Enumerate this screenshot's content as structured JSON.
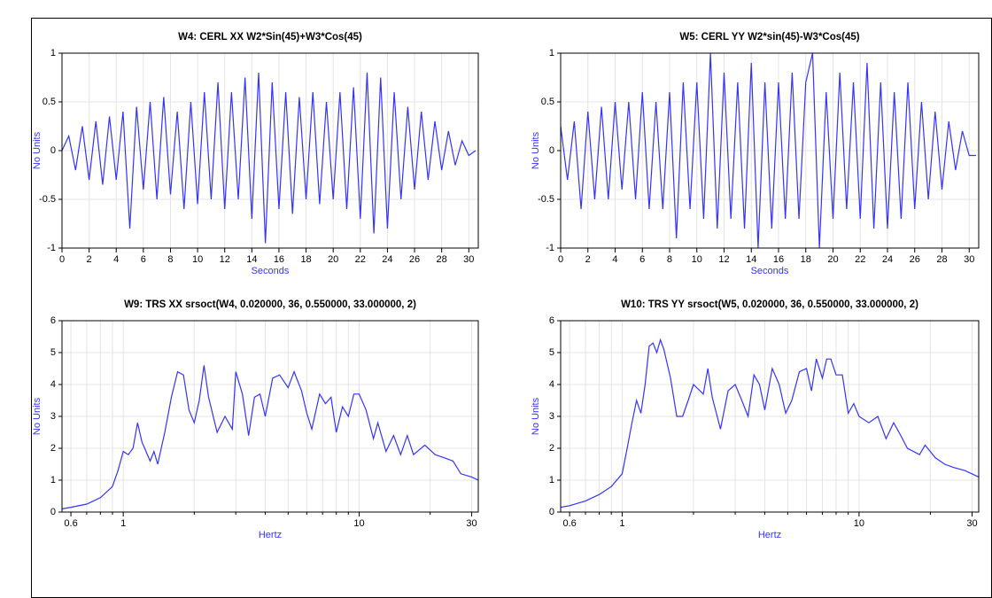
{
  "chart_data": [
    {
      "type": "line",
      "title": "W4: CERL XX  W2*Sin(45)+W3*Cos(45)",
      "x_label": "Seconds",
      "y_label": "No Units",
      "color": "#3333ff",
      "grid": true,
      "xlim": [
        0,
        30.7
      ],
      "xticks": [
        0,
        2,
        4,
        6,
        8,
        10,
        12,
        14,
        16,
        18,
        20,
        22,
        24,
        26,
        28,
        30
      ],
      "ylim": [
        -1,
        1
      ],
      "yticks": [
        -1,
        -0.5,
        0,
        0.5,
        1
      ],
      "x": [
        0,
        0.5,
        1,
        1.5,
        2,
        2.5,
        3,
        3.5,
        4,
        4.5,
        5,
        5.5,
        6,
        6.5,
        7,
        7.5,
        8,
        8.5,
        9,
        9.5,
        10,
        10.5,
        11,
        11.5,
        12,
        12.5,
        13,
        13.5,
        14,
        14.5,
        15,
        15.5,
        16,
        16.5,
        17,
        17.5,
        18,
        18.5,
        19,
        19.5,
        20,
        20.5,
        21,
        21.5,
        22,
        22.5,
        23,
        23.5,
        24,
        24.5,
        25,
        25.5,
        26,
        26.5,
        27,
        27.5,
        28,
        28.5,
        29,
        29.5,
        30,
        30.5
      ],
      "values": [
        0,
        0.15,
        -0.2,
        0.25,
        -0.3,
        0.3,
        -0.35,
        0.35,
        -0.3,
        0.4,
        -0.8,
        0.45,
        -0.4,
        0.5,
        -0.5,
        0.55,
        -0.45,
        0.4,
        -0.6,
        0.5,
        -0.55,
        0.6,
        -0.5,
        0.7,
        -0.6,
        0.6,
        -0.5,
        0.75,
        -0.7,
        0.8,
        -0.95,
        0.7,
        -0.6,
        0.6,
        -0.65,
        0.55,
        -0.5,
        0.6,
        -0.55,
        0.5,
        -0.5,
        0.6,
        -0.6,
        0.65,
        -0.7,
        0.8,
        -0.85,
        0.75,
        -0.8,
        0.6,
        -0.5,
        0.45,
        -0.4,
        0.4,
        -0.3,
        0.3,
        -0.2,
        0.2,
        -0.15,
        0.1,
        -0.05,
        0
      ]
    },
    {
      "type": "line",
      "title": "W5: CERL YY  W2*sin(45)-W3*Cos(45)",
      "x_label": "Seconds",
      "y_label": "No Units",
      "color": "#3333ff",
      "grid": true,
      "xlim": [
        0,
        30.7
      ],
      "xticks": [
        0,
        2,
        4,
        6,
        8,
        10,
        12,
        14,
        16,
        18,
        20,
        22,
        24,
        26,
        28,
        30
      ],
      "ylim": [
        -1,
        1
      ],
      "yticks": [
        -1,
        -0.5,
        0,
        0.5,
        1
      ],
      "x": [
        0,
        0.5,
        1,
        1.5,
        2,
        2.5,
        3,
        3.5,
        4,
        4.5,
        5,
        5.5,
        6,
        6.5,
        7,
        7.5,
        8,
        8.5,
        9,
        9.5,
        10,
        10.5,
        11,
        11.5,
        12,
        12.5,
        13,
        13.5,
        14,
        14.5,
        15,
        15.5,
        16,
        16.5,
        17,
        17.5,
        18,
        18.5,
        19,
        19.5,
        20,
        20.5,
        21,
        21.5,
        22,
        22.5,
        23,
        23.5,
        24,
        24.5,
        25,
        25.5,
        26,
        26.5,
        27,
        27.5,
        28,
        28.5,
        29,
        29.5,
        30,
        30.5
      ],
      "values": [
        0.25,
        -0.3,
        0.3,
        -0.6,
        0.4,
        -0.5,
        0.45,
        -0.5,
        0.5,
        -0.4,
        0.5,
        -0.5,
        0.6,
        -0.6,
        0.5,
        -0.6,
        0.6,
        -0.9,
        0.7,
        -0.6,
        0.7,
        -0.7,
        1.0,
        -0.8,
        0.8,
        -0.7,
        0.7,
        -0.8,
        0.9,
        -1.0,
        0.7,
        -0.8,
        0.7,
        -0.7,
        0.8,
        -0.7,
        0.7,
        1.0,
        -1.0,
        0.6,
        -0.7,
        0.8,
        -0.6,
        0.7,
        -0.7,
        0.9,
        -0.8,
        0.7,
        -0.8,
        0.6,
        -0.7,
        0.7,
        -0.6,
        0.5,
        -0.5,
        0.4,
        -0.4,
        0.3,
        -0.2,
        0.2,
        -0.05,
        -0.05
      ]
    },
    {
      "type": "line",
      "title": "W9: TRS XX srsoct(W4, 0.020000, 36, 0.550000, 33.000000, 2)",
      "x_label": "Hertz",
      "y_label": "No Units",
      "color": "#3333ff",
      "grid": true,
      "xscale": "log",
      "xlim": [
        0.55,
        32
      ],
      "xticks": [
        0.6,
        1,
        10,
        30
      ],
      "xminor": [
        0.7,
        0.8,
        0.9,
        2,
        3,
        4,
        5,
        6,
        7,
        8,
        9,
        20
      ],
      "ylim": [
        0,
        6
      ],
      "yticks": [
        0,
        1,
        2,
        3,
        4,
        5,
        6
      ],
      "x": [
        0.55,
        0.6,
        0.7,
        0.8,
        0.9,
        0.95,
        1.0,
        1.05,
        1.1,
        1.15,
        1.2,
        1.3,
        1.35,
        1.4,
        1.5,
        1.6,
        1.7,
        1.8,
        1.9,
        2.0,
        2.1,
        2.2,
        2.3,
        2.5,
        2.7,
        2.9,
        3.0,
        3.2,
        3.4,
        3.6,
        3.8,
        4.0,
        4.3,
        4.6,
        5.0,
        5.3,
        5.7,
        6.0,
        6.3,
        6.8,
        7.2,
        7.6,
        8.0,
        8.5,
        9.0,
        9.5,
        10,
        10.7,
        11.5,
        12,
        13,
        14,
        15,
        16,
        17,
        19,
        21,
        23,
        25,
        27,
        30,
        32
      ],
      "values": [
        0.1,
        0.15,
        0.25,
        0.45,
        0.8,
        1.3,
        1.9,
        1.8,
        2.0,
        2.8,
        2.2,
        1.6,
        1.9,
        1.5,
        2.5,
        3.6,
        4.4,
        4.3,
        3.2,
        2.8,
        3.5,
        4.6,
        3.6,
        2.5,
        3.0,
        2.6,
        4.4,
        3.7,
        2.4,
        3.6,
        3.7,
        3.0,
        4.2,
        4.3,
        3.9,
        4.4,
        3.8,
        3.1,
        2.6,
        3.7,
        3.4,
        3.6,
        2.5,
        3.3,
        3.0,
        3.7,
        3.7,
        3.2,
        2.3,
        2.8,
        1.9,
        2.4,
        1.8,
        2.4,
        1.8,
        2.1,
        1.8,
        1.7,
        1.6,
        1.2,
        1.1,
        1.0
      ]
    },
    {
      "type": "line",
      "title": "W10: TRS YY  srsoct(W5, 0.020000, 36, 0.550000, 33.000000, 2)",
      "x_label": "Hertz",
      "y_label": "No Units",
      "color": "#3333ff",
      "grid": true,
      "xscale": "log",
      "xlim": [
        0.55,
        32
      ],
      "xticks": [
        0.6,
        1,
        10,
        30
      ],
      "xminor": [
        0.7,
        0.8,
        0.9,
        2,
        3,
        4,
        5,
        6,
        7,
        8,
        9,
        20
      ],
      "ylim": [
        0,
        6
      ],
      "yticks": [
        0,
        1,
        2,
        3,
        4,
        5,
        6
      ],
      "x": [
        0.55,
        0.6,
        0.7,
        0.8,
        0.9,
        1.0,
        1.05,
        1.1,
        1.15,
        1.2,
        1.25,
        1.3,
        1.35,
        1.4,
        1.45,
        1.5,
        1.6,
        1.7,
        1.8,
        1.9,
        2.0,
        2.2,
        2.3,
        2.4,
        2.6,
        2.8,
        3.0,
        3.2,
        3.4,
        3.6,
        3.8,
        4.0,
        4.3,
        4.6,
        4.9,
        5.2,
        5.6,
        6.0,
        6.3,
        6.6,
        7.0,
        7.3,
        7.6,
        8.0,
        8.5,
        9.0,
        9.5,
        10,
        11,
        12,
        13,
        14,
        15,
        16,
        18,
        19,
        21,
        23,
        25,
        28,
        32
      ],
      "values": [
        0.15,
        0.2,
        0.35,
        0.55,
        0.8,
        1.2,
        2.0,
        2.8,
        3.5,
        3.1,
        4.0,
        5.2,
        5.3,
        5.0,
        5.4,
        5.1,
        4.2,
        3.0,
        3.0,
        3.5,
        4.0,
        3.7,
        4.5,
        3.6,
        2.6,
        3.8,
        4.0,
        3.5,
        3.0,
        4.3,
        4.0,
        3.2,
        4.5,
        4.0,
        3.1,
        3.5,
        4.4,
        4.5,
        3.8,
        4.8,
        4.2,
        4.8,
        4.8,
        4.3,
        4.3,
        3.1,
        3.4,
        3.0,
        2.8,
        3.0,
        2.3,
        2.8,
        2.4,
        2.0,
        1.8,
        2.1,
        1.7,
        1.5,
        1.4,
        1.3,
        1.1
      ]
    }
  ]
}
